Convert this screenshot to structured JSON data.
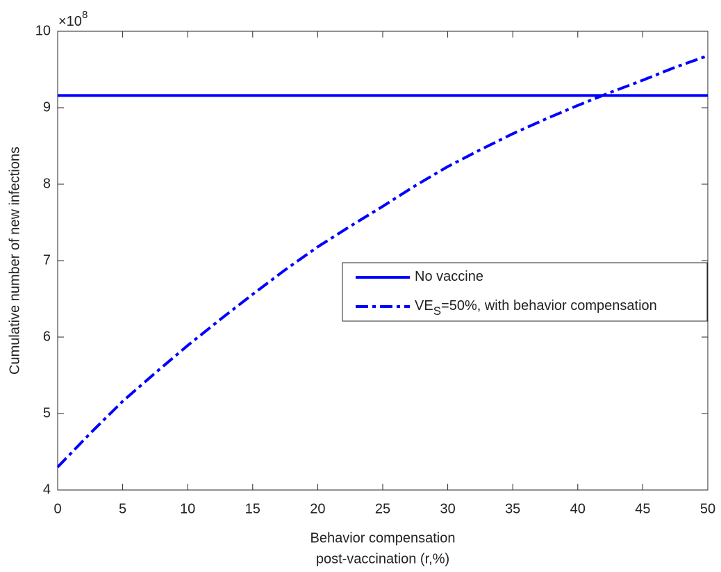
{
  "chart_data": {
    "type": "line",
    "xlabel": [
      "Behavior compensation",
      "post-vaccination (r,%)"
    ],
    "ylabel": "Cumulative number of new infections",
    "y_multiplier": {
      "base": "×10",
      "exponent": "8"
    },
    "xlim": [
      0,
      50
    ],
    "xticks": [
      0,
      5,
      10,
      15,
      20,
      25,
      30,
      35,
      40,
      45,
      50
    ],
    "ylim": [
      4,
      10
    ],
    "yticks": [
      4,
      5,
      6,
      7,
      8,
      9,
      10
    ],
    "grid": false,
    "legend": "center-right",
    "series": [
      {
        "name": [
          "No vaccine"
        ],
        "color": "#0000ff",
        "style": "solid",
        "x": [
          0,
          50
        ],
        "values": [
          9.16,
          9.16
        ]
      },
      {
        "name": [
          "VE",
          "S",
          "=50%, with behavior compensation"
        ],
        "color": "#0000ff",
        "style": "dashdot",
        "x": [
          0,
          2.5,
          5,
          7.5,
          10,
          12.5,
          15,
          17.5,
          20,
          22.5,
          25,
          27.5,
          30,
          32.5,
          35,
          37.5,
          40,
          42.5,
          45,
          47.5,
          50
        ],
        "values": [
          4.3,
          4.74,
          5.16,
          5.53,
          5.89,
          6.23,
          6.56,
          6.88,
          7.18,
          7.45,
          7.71,
          7.98,
          8.23,
          8.45,
          8.66,
          8.85,
          9.03,
          9.2,
          9.36,
          9.53,
          9.68
        ]
      }
    ]
  }
}
